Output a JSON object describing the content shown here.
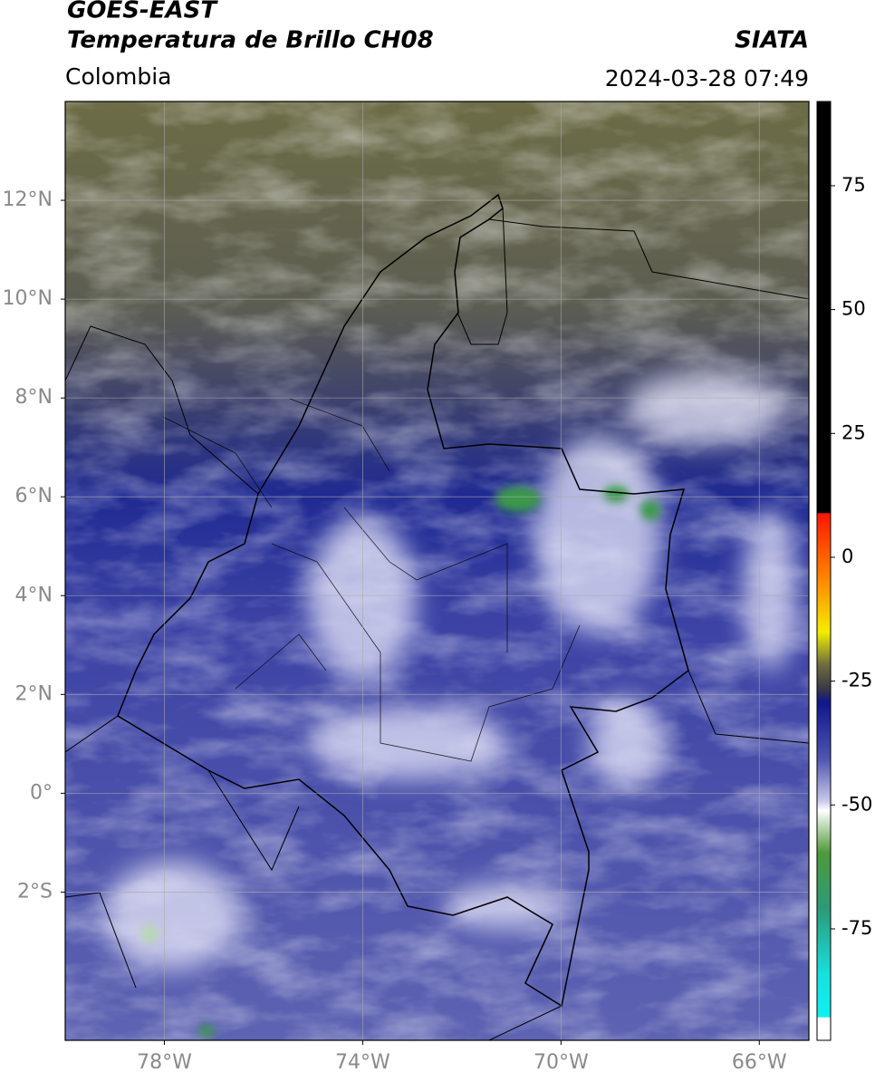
{
  "chart_data": {
    "type": "map",
    "title": "GOES-EAST",
    "subtitle": "Temperatura de Brillo CH08",
    "source": "SIATA",
    "region": "Colombia",
    "timestamp": "2024-03-28 07:49",
    "xlim": [
      -80,
      -65
    ],
    "xticks": [
      {
        "value": -78,
        "label": "78°W"
      },
      {
        "value": -74,
        "label": "74°W"
      },
      {
        "value": -70,
        "label": "70°W"
      },
      {
        "value": -66,
        "label": "66°W"
      }
    ],
    "ylim": [
      -5,
      14
    ],
    "yticks": [
      {
        "value": 12,
        "label": "12°N"
      },
      {
        "value": 10,
        "label": "10°N"
      },
      {
        "value": 8,
        "label": "8°N"
      },
      {
        "value": 6,
        "label": "6°N"
      },
      {
        "value": 4,
        "label": "4°N"
      },
      {
        "value": 2,
        "label": "2°N"
      },
      {
        "value": 0,
        "label": "0°"
      },
      {
        "value": -2,
        "label": "2°S"
      }
    ],
    "grid": true,
    "colorbar": {
      "lim": [
        -97.5,
        92
      ],
      "ticks": [
        75,
        50,
        25,
        0,
        -25,
        -50,
        -75
      ]
    }
  }
}
